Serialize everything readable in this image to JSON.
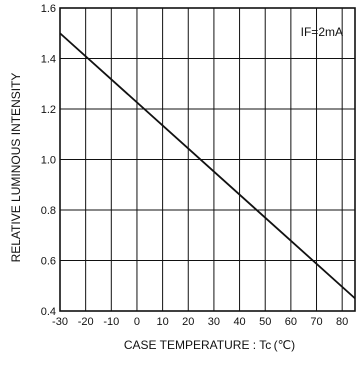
{
  "chart_data": {
    "type": "line",
    "xlabel": "CASE TEMPERATURE : Tc (℃)",
    "ylabel": "RELATIVE LUMINOUS INTENSITY",
    "annotation": "IF=2mA",
    "xlim": [
      -30,
      85
    ],
    "ylim": [
      0.4,
      1.6
    ],
    "x_ticks": [
      -30,
      -20,
      -10,
      0,
      10,
      20,
      30,
      40,
      50,
      60,
      70,
      80
    ],
    "x_tick_labels": [
      "-30",
      "-20",
      "-10",
      "0",
      "10",
      "20",
      "30",
      "40",
      "50",
      "60",
      "70",
      "80"
    ],
    "y_ticks": [
      0.4,
      0.6,
      0.8,
      1.0,
      1.2,
      1.4,
      1.6
    ],
    "y_tick_labels": [
      "0.4",
      "0.6",
      "0.8",
      "1.0",
      "1.2",
      "1.4",
      "1.6"
    ],
    "grid": true,
    "series": [
      {
        "x": [
          -30,
          85
        ],
        "y": [
          1.5,
          0.45
        ]
      }
    ]
  }
}
